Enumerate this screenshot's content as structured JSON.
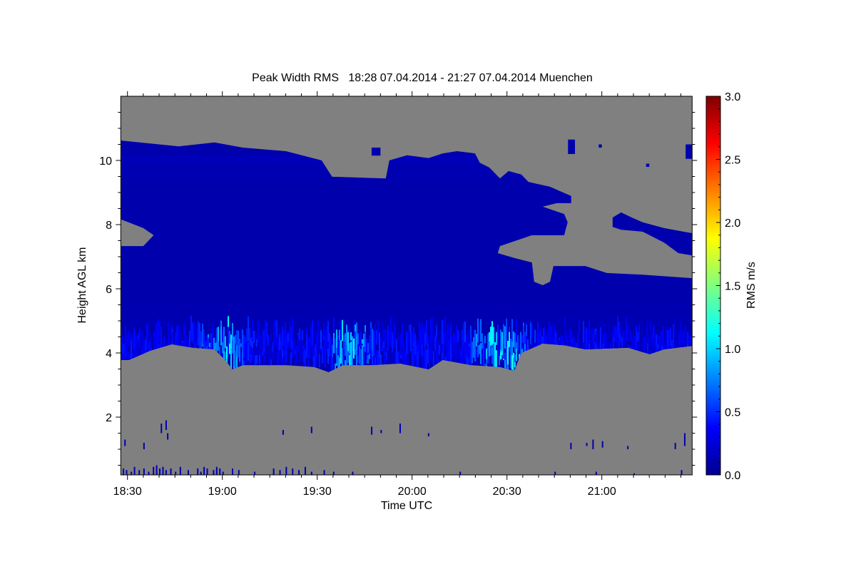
{
  "chart_data": {
    "type": "heatmap",
    "title": "Peak Width RMS   18:28 07.04.2014 - 21:27 07.04.2014 Muenchen",
    "xlabel": "Time UTC",
    "ylabel": "Height AGL km",
    "colorbar_label": "RMS m/s",
    "x_unit": "minutes after 18:00 UTC",
    "xlim": [
      28,
      208.6
    ],
    "ylim": [
      0.2,
      12.0
    ],
    "x_ticks": [
      {
        "value": 30,
        "label": "18:30"
      },
      {
        "value": 60,
        "label": "19:00"
      },
      {
        "value": 90,
        "label": "19:30"
      },
      {
        "value": 120,
        "label": "20:00"
      },
      {
        "value": 150,
        "label": "20:30"
      },
      {
        "value": 180,
        "label": "21:00"
      }
    ],
    "y_ticks": [
      {
        "value": 2,
        "label": "2"
      },
      {
        "value": 4,
        "label": "4"
      },
      {
        "value": 6,
        "label": "6"
      },
      {
        "value": 8,
        "label": "8"
      },
      {
        "value": 10,
        "label": "10"
      }
    ],
    "colorbar": {
      "range": [
        0,
        3
      ],
      "ticks": [
        {
          "value": 0,
          "label": "0.0"
        },
        {
          "value": 0.5,
          "label": "0.5"
        },
        {
          "value": 1.0,
          "label": "1.0"
        },
        {
          "value": 1.5,
          "label": "1.5"
        },
        {
          "value": 2.0,
          "label": "2.0"
        },
        {
          "value": 2.5,
          "label": "2.5"
        },
        {
          "value": 3.0,
          "label": "3.0"
        }
      ],
      "colormap": [
        "#00008f",
        "#0000ff",
        "#00ffff",
        "#ffff00",
        "#ff0000",
        "#800000"
      ]
    },
    "no_data_color": "#808080",
    "main_cloud": {
      "typical_rms": 0.1,
      "outline": [
        [
          28,
          10.62
        ],
        [
          46.2,
          10.44
        ],
        [
          57.5,
          10.56
        ],
        [
          66.5,
          10.4
        ],
        [
          80.1,
          10.29
        ],
        [
          91.4,
          10.0
        ],
        [
          94.7,
          9.49
        ],
        [
          111.7,
          9.44
        ],
        [
          112.8,
          10.0
        ],
        [
          118.4,
          10.16
        ],
        [
          125.2,
          10.07
        ],
        [
          129.7,
          10.22
        ],
        [
          134.2,
          10.29
        ],
        [
          139.9,
          10.22
        ],
        [
          141.4,
          9.93
        ],
        [
          144.4,
          9.78
        ],
        [
          147.8,
          9.44
        ],
        [
          150.5,
          9.67
        ],
        [
          154.5,
          9.56
        ],
        [
          156.8,
          9.33
        ],
        [
          163.6,
          9.18
        ],
        [
          170.3,
          8.89
        ],
        [
          170.3,
          8.67
        ],
        [
          165.8,
          8.67
        ],
        [
          161.3,
          8.56
        ],
        [
          168.1,
          8.33
        ],
        [
          169.2,
          8.07
        ],
        [
          168.1,
          7.67
        ],
        [
          157.9,
          7.67
        ],
        [
          147.8,
          7.33
        ],
        [
          147.1,
          7.11
        ],
        [
          152.3,
          6.96
        ],
        [
          157.9,
          6.82
        ],
        [
          158.6,
          6.22
        ],
        [
          161.3,
          6.11
        ],
        [
          163.6,
          6.22
        ],
        [
          164.7,
          6.71
        ],
        [
          174.8,
          6.71
        ],
        [
          181.6,
          6.49
        ],
        [
          192.9,
          6.44
        ],
        [
          208.6,
          6.33
        ],
        [
          208.6,
          4.22
        ],
        [
          199.7,
          4.11
        ],
        [
          195.1,
          3.96
        ],
        [
          188.4,
          4.16
        ],
        [
          174.8,
          4.11
        ],
        [
          168.1,
          4.24
        ],
        [
          161.3,
          4.29
        ],
        [
          154.5,
          4.0
        ],
        [
          152.3,
          3.44
        ],
        [
          147.8,
          3.56
        ],
        [
          138.7,
          3.62
        ],
        [
          129.7,
          3.78
        ],
        [
          125.2,
          3.49
        ],
        [
          116.2,
          3.67
        ],
        [
          107.2,
          3.62
        ],
        [
          98.1,
          3.62
        ],
        [
          93.6,
          3.4
        ],
        [
          89.1,
          3.56
        ],
        [
          80.1,
          3.62
        ],
        [
          66.5,
          3.62
        ],
        [
          63.2,
          3.49
        ],
        [
          60.9,
          3.78
        ],
        [
          57.5,
          4.11
        ],
        [
          50.8,
          4.16
        ],
        [
          44.0,
          4.27
        ],
        [
          37.2,
          4.07
        ],
        [
          30.5,
          3.78
        ],
        [
          28,
          3.78
        ],
        [
          28,
          7.33
        ],
        [
          35,
          7.33
        ],
        [
          38.3,
          7.67
        ],
        [
          35,
          7.89
        ],
        [
          28,
          8.16
        ]
      ]
    },
    "upper_right_layer": {
      "typical_rms": 0.1,
      "outline": [
        [
          183.4,
          8.22
        ],
        [
          186.1,
          8.38
        ],
        [
          189.5,
          8.22
        ],
        [
          192.9,
          8.07
        ],
        [
          199.7,
          7.89
        ],
        [
          208.6,
          7.73
        ],
        [
          208.6,
          7.04
        ],
        [
          204.2,
          7.11
        ],
        [
          199.7,
          7.44
        ],
        [
          192.9,
          7.78
        ],
        [
          186.1,
          7.84
        ],
        [
          183.4,
          7.93
        ]
      ]
    },
    "cloud_base_turbulence": {
      "height_range": [
        3.4,
        4.8
      ],
      "rms_range": [
        0.2,
        1.1
      ],
      "peak_times": [
        60,
        100,
        145,
        150
      ]
    },
    "small_patches": [
      [
        107.2,
        110,
        10.15,
        10.4
      ],
      [
        169.3,
        171.5,
        10.2,
        10.65
      ],
      [
        179,
        180,
        10.4,
        10.5
      ],
      [
        206.5,
        208.6,
        10.05,
        10.5
      ],
      [
        194,
        195,
        9.8,
        9.9
      ]
    ],
    "low_echoes": [
      [
        29,
        1.1,
        1.3
      ],
      [
        35,
        1.0,
        1.2
      ],
      [
        40.5,
        1.5,
        1.8
      ],
      [
        42,
        1.6,
        1.9
      ],
      [
        42.5,
        1.3,
        1.5
      ],
      [
        79,
        1.45,
        1.6
      ],
      [
        88,
        1.5,
        1.7
      ],
      [
        107,
        1.45,
        1.7
      ],
      [
        110,
        1.5,
        1.6
      ],
      [
        116,
        1.5,
        1.8
      ],
      [
        125,
        1.4,
        1.5
      ],
      [
        170,
        1.0,
        1.2
      ],
      [
        175,
        1.1,
        1.2
      ],
      [
        177,
        1.0,
        1.3
      ],
      [
        180,
        1.05,
        1.25
      ],
      [
        188,
        1.0,
        1.1
      ],
      [
        203,
        1.0,
        1.2
      ],
      [
        206,
        1.1,
        1.5
      ]
    ],
    "surface_echoes": [
      [
        28.5,
        0.4
      ],
      [
        29.5,
        0.35
      ],
      [
        31,
        0.3
      ],
      [
        32,
        0.45
      ],
      [
        33.5,
        0.35
      ],
      [
        35,
        0.4
      ],
      [
        36.5,
        0.3
      ],
      [
        38,
        0.45
      ],
      [
        39,
        0.5
      ],
      [
        40,
        0.4
      ],
      [
        41,
        0.45
      ],
      [
        42,
        0.35
      ],
      [
        43.5,
        0.4
      ],
      [
        45,
        0.3
      ],
      [
        46.5,
        0.45
      ],
      [
        49,
        0.35
      ],
      [
        52,
        0.4
      ],
      [
        53,
        0.3
      ],
      [
        54,
        0.45
      ],
      [
        55,
        0.4
      ],
      [
        57,
        0.35
      ],
      [
        58,
        0.45
      ],
      [
        59,
        0.4
      ],
      [
        60,
        0.3
      ],
      [
        63,
        0.4
      ],
      [
        65,
        0.35
      ],
      [
        70,
        0.3
      ],
      [
        76,
        0.4
      ],
      [
        78,
        0.35
      ],
      [
        80,
        0.45
      ],
      [
        82,
        0.4
      ],
      [
        84,
        0.35
      ],
      [
        86,
        0.45
      ],
      [
        88,
        0.3
      ],
      [
        92,
        0.35
      ],
      [
        95,
        0.3
      ],
      [
        101,
        0.3
      ],
      [
        135,
        0.3
      ],
      [
        165,
        0.3
      ],
      [
        178,
        0.3
      ],
      [
        190,
        0.25
      ],
      [
        205,
        0.35
      ]
    ]
  }
}
